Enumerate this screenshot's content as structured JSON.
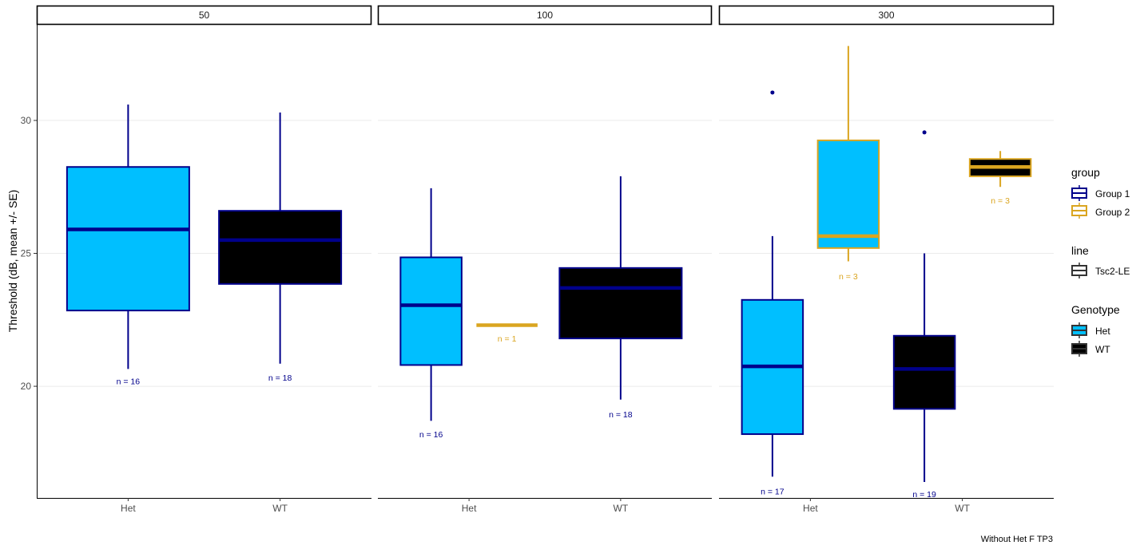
{
  "chart_data": {
    "type": "boxplot",
    "facet_var_values": [
      "50",
      "100",
      "300"
    ],
    "categories": [
      "Het",
      "WT"
    ],
    "ylabel": "Threshold (dB, mean +/- SE)",
    "ylim": [
      15.8,
      33.6
    ],
    "yticks": [
      20,
      25,
      30
    ],
    "caption": "Without Het F TP3",
    "colors": {
      "Group 1": "#00008B",
      "Group 2": "#DAA520",
      "Het": "#00BFFF",
      "WT": "#000000",
      "grid": "#EBEBEB"
    },
    "legend": {
      "position": "right",
      "group": {
        "title": "group",
        "entries": [
          "Group 1",
          "Group 2"
        ]
      },
      "line": {
        "title": "line",
        "entries": [
          "Tsc2-LE"
        ]
      },
      "genotype": {
        "title": "Genotype",
        "entries": [
          "Het",
          "WT"
        ]
      }
    },
    "panels": [
      {
        "facet": "50",
        "boxes": [
          {
            "category": "Het",
            "group": "Group 1",
            "genotype": "Het",
            "min": 20.65,
            "q1": 22.85,
            "median": 25.9,
            "q3": 28.25,
            "max": 30.6,
            "outliers": [],
            "n_label": "n = 16",
            "n_y": 20.2
          },
          {
            "category": "WT",
            "group": "Group 1",
            "genotype": "WT",
            "min": 20.85,
            "q1": 23.85,
            "median": 25.5,
            "q3": 26.6,
            "max": 30.3,
            "outliers": [],
            "n_label": "n = 18",
            "n_y": 20.33
          }
        ]
      },
      {
        "facet": "100",
        "boxes": [
          {
            "category": "Het",
            "group": "Group 1",
            "genotype": "Het",
            "min": 18.7,
            "q1": 20.8,
            "median": 23.05,
            "q3": 24.85,
            "max": 27.45,
            "outliers": [],
            "n_label": "n = 16",
            "n_y": 18.2
          },
          {
            "category": "Het",
            "group": "Group 2",
            "genotype": "Het",
            "min": 22.3,
            "q1": 22.3,
            "median": 22.3,
            "q3": 22.3,
            "max": 22.3,
            "outliers": [],
            "n_label": "n = 1",
            "n_y": 21.8
          },
          {
            "category": "WT",
            "group": "Group 1",
            "genotype": "WT",
            "min": 19.5,
            "q1": 21.8,
            "median": 23.7,
            "q3": 24.45,
            "max": 27.9,
            "outliers": [],
            "n_label": "n = 18",
            "n_y": 18.95
          }
        ]
      },
      {
        "facet": "300",
        "boxes": [
          {
            "category": "Het",
            "group": "Group 1",
            "genotype": "Het",
            "min": 16.6,
            "q1": 18.2,
            "median": 20.75,
            "q3": 23.25,
            "max": 25.65,
            "outliers": [
              31.05
            ],
            "n_label": "n = 17",
            "n_y": 16.05
          },
          {
            "category": "Het",
            "group": "Group 2",
            "genotype": "Het",
            "min": 24.7,
            "q1": 25.2,
            "median": 25.65,
            "q3": 29.25,
            "max": 32.8,
            "outliers": [],
            "n_label": "n = 3",
            "n_y": 24.15
          },
          {
            "category": "WT",
            "group": "Group 1",
            "genotype": "WT",
            "min": 16.4,
            "q1": 19.15,
            "median": 20.65,
            "q3": 21.9,
            "max": 25.0,
            "outliers": [
              29.55
            ],
            "n_label": "n = 19",
            "n_y": 15.95
          },
          {
            "category": "WT",
            "group": "Group 2",
            "genotype": "WT",
            "min": 27.5,
            "q1": 27.9,
            "median": 28.25,
            "q3": 28.55,
            "max": 28.85,
            "outliers": [],
            "n_label": "n = 3",
            "n_y": 27.0
          }
        ]
      }
    ]
  }
}
